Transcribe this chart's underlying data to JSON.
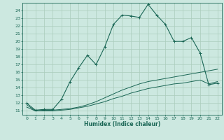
{
  "xlabel": "Humidex (Indice chaleur)",
  "bg_color": "#cce8e0",
  "grid_color": "#aaccbb",
  "line_color": "#1a6655",
  "xlim": [
    -0.5,
    22.5
  ],
  "ylim": [
    10.5,
    25.0
  ],
  "yticks": [
    11,
    12,
    13,
    14,
    15,
    16,
    17,
    18,
    19,
    20,
    21,
    22,
    23,
    24
  ],
  "xticks": [
    0,
    1,
    2,
    3,
    4,
    5,
    6,
    7,
    8,
    9,
    10,
    11,
    12,
    13,
    14,
    15,
    16,
    17,
    18,
    19,
    20,
    21,
    22
  ],
  "line1_x": [
    0,
    1,
    2,
    3,
    4,
    5,
    6,
    7,
    8,
    9,
    10,
    11,
    12,
    13,
    14,
    15,
    16,
    17,
    18,
    19,
    20,
    21,
    22
  ],
  "line1_y": [
    12.0,
    11.1,
    11.2,
    11.2,
    12.5,
    14.8,
    16.6,
    18.2,
    17.0,
    19.3,
    22.2,
    23.4,
    23.3,
    23.1,
    24.8,
    23.4,
    22.2,
    20.0,
    20.0,
    20.5,
    18.5,
    14.4,
    14.6
  ],
  "line2_x": [
    0,
    1,
    2,
    3,
    4,
    5,
    6,
    7,
    8,
    9,
    10,
    11,
    12,
    13,
    14,
    15,
    16,
    17,
    18,
    19,
    20,
    21,
    22
  ],
  "line2_y": [
    11.8,
    11.0,
    11.1,
    11.1,
    11.2,
    11.3,
    11.5,
    11.8,
    12.2,
    12.7,
    13.2,
    13.7,
    14.1,
    14.5,
    14.8,
    15.0,
    15.2,
    15.4,
    15.6,
    15.8,
    16.0,
    16.2,
    16.4
  ],
  "line3_x": [
    0,
    1,
    2,
    3,
    4,
    5,
    6,
    7,
    8,
    9,
    10,
    11,
    12,
    13,
    14,
    15,
    16,
    17,
    18,
    19,
    20,
    21,
    22
  ],
  "line3_y": [
    11.5,
    11.0,
    11.0,
    11.0,
    11.1,
    11.2,
    11.4,
    11.6,
    11.9,
    12.2,
    12.6,
    12.9,
    13.3,
    13.6,
    13.9,
    14.1,
    14.3,
    14.5,
    14.6,
    14.8,
    15.0,
    14.5,
    14.8
  ],
  "figsize": [
    3.2,
    2.0
  ],
  "dpi": 100
}
